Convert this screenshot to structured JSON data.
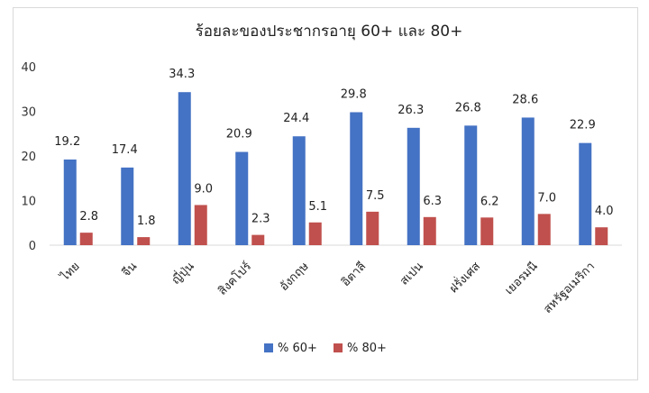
{
  "chart_data": {
    "type": "bar",
    "title": "ร้อยละของประชากรอายุ 60+ และ 80+",
    "categories": [
      "ไทย",
      "จีน",
      "ญี่ปุ่น",
      "สิงคโปร์",
      "อังกฤษ",
      "อิตาลี",
      "สเปน",
      "ฝรั่งเศส",
      "เยอรมนี",
      "สหรัฐอเมริกา"
    ],
    "series": [
      {
        "name": "% 60+",
        "values": [
          19.2,
          17.4,
          34.3,
          20.9,
          24.4,
          29.8,
          26.3,
          26.8,
          28.6,
          22.9
        ],
        "color": "#4472c4"
      },
      {
        "name": "% 80+",
        "values": [
          2.8,
          1.8,
          9.0,
          2.3,
          5.1,
          7.5,
          6.3,
          6.2,
          7.0,
          4.0
        ],
        "color": "#c0504d"
      }
    ],
    "ylim": [
      0,
      40
    ],
    "yticks": [
      "0",
      "10",
      "20",
      "30",
      "40"
    ],
    "grid": false,
    "legend": "bottom"
  }
}
